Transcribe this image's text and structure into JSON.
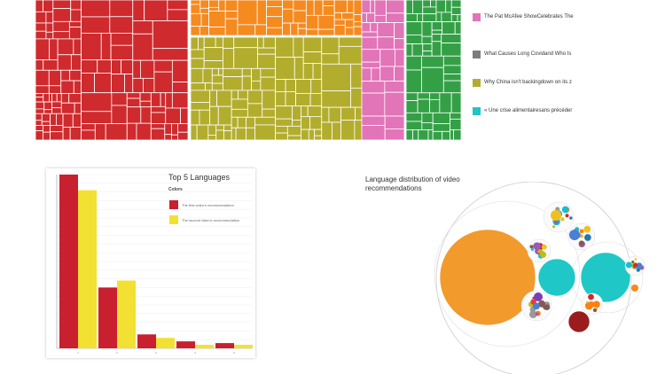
{
  "treemap": {
    "colors": {
      "red": "#cf2a2d",
      "orange": "#f58a1f",
      "olive": "#b3ad2e",
      "pink": "#e274b8",
      "green": "#34a046",
      "gray": "#7d7d7d",
      "teal": "#23c4c4"
    },
    "legend": [
      {
        "label": "The Pat McAfee ShowCelebrates The",
        "color": "#e274b8"
      },
      {
        "label": "What Causes Long Covidand Who Is",
        "color": "#7d7d7d"
      },
      {
        "label": "Why China isn't backingdown on its z",
        "color": "#b3ad2e"
      },
      {
        "label": "« Une crise alimentairesans précéder",
        "color": "#23c4c4"
      }
    ]
  },
  "chart_data": [
    {
      "type": "bar",
      "title": "Top 5 Languages",
      "legend_title": "Colors",
      "categories": [
        "1",
        "2",
        "3",
        "4",
        "5"
      ],
      "series": [
        {
          "name": "The first video's recommendation",
          "color": "#c8202f",
          "values": [
            100,
            35,
            8,
            4,
            3
          ]
        },
        {
          "name": "The second video's recommendation",
          "color": "#f2e033",
          "values": [
            91,
            39,
            6,
            2,
            2
          ]
        }
      ],
      "ylim": [
        0,
        100
      ]
    },
    {
      "type": "bubble",
      "title": "Language distribution of video recommendations",
      "clusters": [
        {
          "color": "#f39a2c",
          "value": 100
        },
        {
          "color": "#1fc8c6",
          "value": 14
        },
        {
          "color": "#1fc8c6",
          "value": 25
        },
        {
          "color": "#9b1c1c",
          "value": 4
        }
      ]
    }
  ]
}
